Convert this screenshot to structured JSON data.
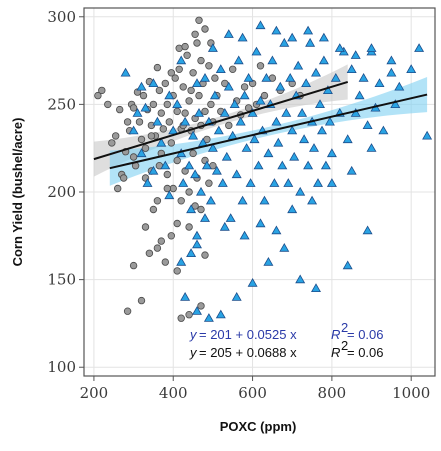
{
  "chart_data": {
    "type": "scatter",
    "xlabel": "POXC (ppm)",
    "ylabel": "Corn Yield (bushel/acre)",
    "xlim": [
      175,
      1060
    ],
    "ylim": [
      95,
      305
    ],
    "xticks": [
      200,
      400,
      600,
      800,
      1000
    ],
    "yticks": [
      100,
      150,
      200,
      250,
      300
    ],
    "grid": true,
    "series": [
      {
        "marker": "circle",
        "color": "#9a9a9a",
        "edge": "#4a4a4a",
        "points": [
          [
            210,
            255
          ],
          [
            220,
            258
          ],
          [
            235,
            250
          ],
          [
            245,
            228
          ],
          [
            255,
            232
          ],
          [
            265,
            247
          ],
          [
            270,
            210
          ],
          [
            280,
            223
          ],
          [
            285,
            240
          ],
          [
            290,
            235
          ],
          [
            295,
            250
          ],
          [
            300,
            248
          ],
          [
            300,
            220
          ],
          [
            305,
            215
          ],
          [
            310,
            257
          ],
          [
            315,
            240
          ],
          [
            320,
            230
          ],
          [
            325,
            255
          ],
          [
            330,
            225
          ],
          [
            335,
            247
          ],
          [
            340,
            263
          ],
          [
            345,
            238
          ],
          [
            350,
            250
          ],
          [
            355,
            232
          ],
          [
            360,
            271
          ],
          [
            365,
            258
          ],
          [
            370,
            245
          ],
          [
            375,
            236
          ],
          [
            380,
            262
          ],
          [
            385,
            250
          ],
          [
            390,
            240
          ],
          [
            395,
            228
          ],
          [
            400,
            255
          ],
          [
            405,
            265
          ],
          [
            410,
            246
          ],
          [
            415,
            282
          ],
          [
            420,
            236
          ],
          [
            425,
            260
          ],
          [
            430,
            245
          ],
          [
            435,
            278
          ],
          [
            440,
            252
          ],
          [
            445,
            235
          ],
          [
            450,
            268
          ],
          [
            455,
            242
          ],
          [
            460,
            285
          ],
          [
            465,
            255
          ],
          [
            470,
            238
          ],
          [
            475,
            262
          ],
          [
            480,
            246
          ],
          [
            485,
            230
          ],
          [
            490,
            272
          ],
          [
            495,
            250
          ],
          [
            500,
            240
          ],
          [
            505,
            265
          ],
          [
            510,
            255
          ],
          [
            520,
            246
          ],
          [
            530,
            262
          ],
          [
            540,
            238
          ],
          [
            550,
            270
          ],
          [
            560,
            252
          ],
          [
            570,
            244
          ],
          [
            580,
            260
          ],
          [
            590,
            248
          ],
          [
            600,
            262
          ],
          [
            610,
            250
          ],
          [
            620,
            272
          ],
          [
            630,
            255
          ],
          [
            650,
            265
          ],
          [
            670,
            258
          ],
          [
            700,
            262
          ],
          [
            720,
            255
          ],
          [
            260,
            202
          ],
          [
            275,
            208
          ],
          [
            330,
            208
          ],
          [
            345,
            212
          ],
          [
            360,
            195
          ],
          [
            370,
            222
          ],
          [
            385,
            210
          ],
          [
            400,
            202
          ],
          [
            410,
            218
          ],
          [
            420,
            195
          ],
          [
            430,
            212
          ],
          [
            440,
            200
          ],
          [
            450,
            222
          ],
          [
            460,
            208
          ],
          [
            470,
            190
          ],
          [
            480,
            218
          ],
          [
            490,
            205
          ],
          [
            500,
            215
          ],
          [
            440,
            180
          ],
          [
            455,
            192
          ],
          [
            330,
            180
          ],
          [
            350,
            190
          ],
          [
            370,
            172
          ],
          [
            380,
            160
          ],
          [
            360,
            168
          ],
          [
            340,
            165
          ],
          [
            320,
            138
          ],
          [
            285,
            132
          ],
          [
            300,
            158
          ],
          [
            410,
            155
          ],
          [
            440,
            130
          ],
          [
            420,
            128
          ],
          [
            470,
            135
          ],
          [
            480,
            164
          ],
          [
            395,
            175
          ],
          [
            410,
            182
          ],
          [
            385,
            202
          ],
          [
            365,
            215
          ],
          [
            345,
            232
          ],
          [
            395,
            268
          ],
          [
            415,
            270
          ],
          [
            425,
            238
          ],
          [
            445,
            258
          ],
          [
            465,
            298
          ],
          [
            480,
            293
          ],
          [
            495,
            285
          ],
          [
            470,
            275
          ],
          [
            455,
            290
          ],
          [
            430,
            283
          ]
        ]
      },
      {
        "marker": "triangle",
        "color": "#29a3e3",
        "edge": "#1c4e8c",
        "points": [
          [
            280,
            268
          ],
          [
            300,
            235
          ],
          [
            320,
            222
          ],
          [
            335,
            205
          ],
          [
            350,
            212
          ],
          [
            370,
            228
          ],
          [
            380,
            215
          ],
          [
            390,
            198
          ],
          [
            400,
            235
          ],
          [
            410,
            250
          ],
          [
            420,
            222
          ],
          [
            425,
            205
          ],
          [
            430,
            240
          ],
          [
            440,
            215
          ],
          [
            445,
            190
          ],
          [
            450,
            232
          ],
          [
            455,
            210
          ],
          [
            460,
            175
          ],
          [
            465,
            245
          ],
          [
            470,
            200
          ],
          [
            475,
            228
          ],
          [
            480,
            265
          ],
          [
            485,
            215
          ],
          [
            490,
            240
          ],
          [
            495,
            195
          ],
          [
            500,
            225
          ],
          [
            505,
            255
          ],
          [
            510,
            212
          ],
          [
            515,
            235
          ],
          [
            520,
            270
          ],
          [
            525,
            205
          ],
          [
            530,
            245
          ],
          [
            535,
            220
          ],
          [
            540,
            260
          ],
          [
            545,
            185
          ],
          [
            550,
            232
          ],
          [
            555,
            250
          ],
          [
            560,
            210
          ],
          [
            565,
            275
          ],
          [
            570,
            240
          ],
          [
            575,
            195
          ],
          [
            580,
            255
          ],
          [
            585,
            225
          ],
          [
            590,
            265
          ],
          [
            595,
            205
          ],
          [
            600,
            245
          ],
          [
            605,
            230
          ],
          [
            610,
            280
          ],
          [
            615,
            215
          ],
          [
            620,
            252
          ],
          [
            625,
            235
          ],
          [
            630,
            195
          ],
          [
            635,
            265
          ],
          [
            640,
            222
          ],
          [
            645,
            250
          ],
          [
            650,
            275
          ],
          [
            655,
            205
          ],
          [
            660,
            240
          ],
          [
            665,
            228
          ],
          [
            670,
            260
          ],
          [
            675,
            215
          ],
          [
            680,
            285
          ],
          [
            685,
            245
          ],
          [
            690,
            205
          ],
          [
            695,
            265
          ],
          [
            700,
            235
          ],
          [
            705,
            220
          ],
          [
            710,
            255
          ],
          [
            715,
            272
          ],
          [
            720,
            200
          ],
          [
            725,
            245
          ],
          [
            730,
            230
          ],
          [
            735,
            262
          ],
          [
            740,
            215
          ],
          [
            745,
            285
          ],
          [
            750,
            240
          ],
          [
            755,
            225
          ],
          [
            760,
            268
          ],
          [
            765,
            205
          ],
          [
            770,
            250
          ],
          [
            775,
            235
          ],
          [
            780,
            275
          ],
          [
            785,
            215
          ],
          [
            790,
            258
          ],
          [
            795,
            240
          ],
          [
            800,
            222
          ],
          [
            810,
            265
          ],
          [
            820,
            245
          ],
          [
            830,
            280
          ],
          [
            840,
            230
          ],
          [
            850,
            270
          ],
          [
            860,
            245
          ],
          [
            870,
            255
          ],
          [
            880,
            265
          ],
          [
            890,
            238
          ],
          [
            900,
            280
          ],
          [
            910,
            248
          ],
          [
            920,
            262
          ],
          [
            930,
            235
          ],
          [
            950,
            268
          ],
          [
            970,
            260
          ],
          [
            1000,
            270
          ],
          [
            1020,
            282
          ],
          [
            1040,
            232
          ],
          [
            890,
            178
          ],
          [
            840,
            158
          ],
          [
            760,
            145
          ],
          [
            720,
            150
          ],
          [
            680,
            168
          ],
          [
            640,
            160
          ],
          [
            600,
            148
          ],
          [
            560,
            140
          ],
          [
            520,
            130
          ],
          [
            490,
            128
          ],
          [
            460,
            132
          ],
          [
            430,
            140
          ],
          [
            445,
            165
          ],
          [
            460,
            170
          ],
          [
            420,
            160
          ],
          [
            480,
            185
          ],
          [
            530,
            180
          ],
          [
            580,
            175
          ],
          [
            620,
            182
          ],
          [
            660,
            178
          ],
          [
            700,
            190
          ],
          [
            750,
            195
          ],
          [
            800,
            205
          ],
          [
            850,
            212
          ],
          [
            900,
            225
          ],
          [
            960,
            250
          ],
          [
            330,
            248
          ],
          [
            360,
            240
          ],
          [
            320,
            260
          ],
          [
            310,
            245
          ],
          [
            350,
            262
          ],
          [
            390,
            255
          ],
          [
            420,
            275
          ],
          [
            460,
            262
          ],
          [
            500,
            282
          ],
          [
            540,
            290
          ],
          [
            575,
            288
          ],
          [
            620,
            295
          ],
          [
            660,
            292
          ],
          [
            700,
            288
          ],
          [
            740,
            292
          ],
          [
            780,
            288
          ],
          [
            820,
            282
          ],
          [
            860,
            278
          ],
          [
            900,
            282
          ],
          [
            950,
            275
          ]
        ]
      }
    ],
    "fits": [
      {
        "intercept": 205,
        "slope": 0.0688,
        "x": [
          200,
          840
        ],
        "color": "#111111",
        "band": "#c8c8c8"
      },
      {
        "intercept": 201,
        "slope": 0.0525,
        "x": [
          240,
          1040
        ],
        "color": "#111111",
        "band": "#7fd0f2"
      }
    ]
  },
  "equations": [
    {
      "color": "#2a3aa8",
      "eq_y": "y",
      "eq_body": " = 201 + 0.0525 x",
      "r2_lhs": "R",
      "r2_sup": "2",
      "r2_rhs": " = 0.06"
    },
    {
      "color": "#111111",
      "eq_y": "y",
      "eq_body": " = 205 + 0.0688 x",
      "r2_lhs": "R",
      "r2_sup": "2",
      "r2_rhs": " = 0.06"
    }
  ]
}
